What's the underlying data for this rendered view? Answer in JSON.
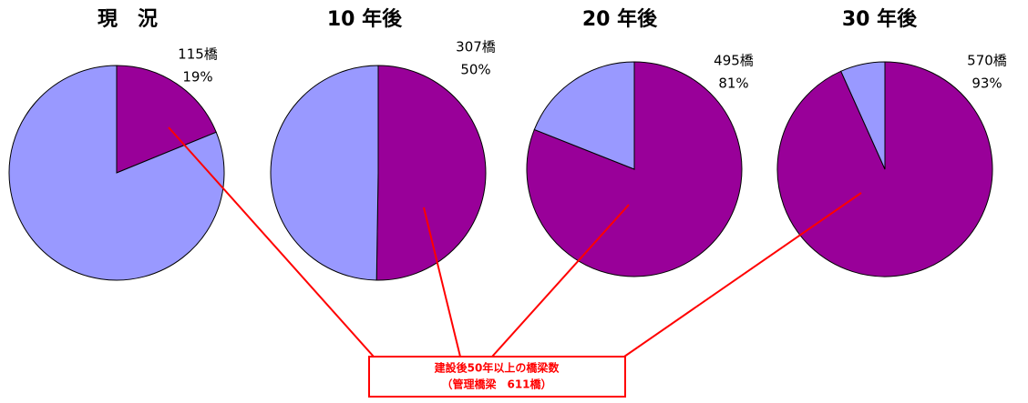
{
  "chart_data": [
    {
      "type": "pie",
      "title": "現　況",
      "values": [
        115,
        496
      ],
      "colors": [
        "#990099",
        "#9999ff"
      ],
      "value_labels": [
        "115橋",
        null
      ],
      "percent_labels": [
        "19%",
        null
      ]
    },
    {
      "type": "pie",
      "title": "10 年後",
      "values": [
        307,
        304
      ],
      "colors": [
        "#990099",
        "#9999ff"
      ],
      "value_labels": [
        "307橋",
        null
      ],
      "percent_labels": [
        "50%",
        null
      ]
    },
    {
      "type": "pie",
      "title": "20 年後",
      "values": [
        495,
        116
      ],
      "colors": [
        "#990099",
        "#9999ff"
      ],
      "value_labels": [
        "495橋",
        null
      ],
      "percent_labels": [
        "81%",
        null
      ]
    },
    {
      "type": "pie",
      "title": "30 年後",
      "values": [
        570,
        41
      ],
      "colors": [
        "#990099",
        "#9999ff"
      ],
      "value_labels": [
        "570橋",
        null
      ],
      "percent_labels": [
        "93%",
        null
      ]
    }
  ],
  "callout": {
    "line1": "建設後50年以上の橋梁数",
    "line2": "（管理橋梁　611橋）"
  }
}
